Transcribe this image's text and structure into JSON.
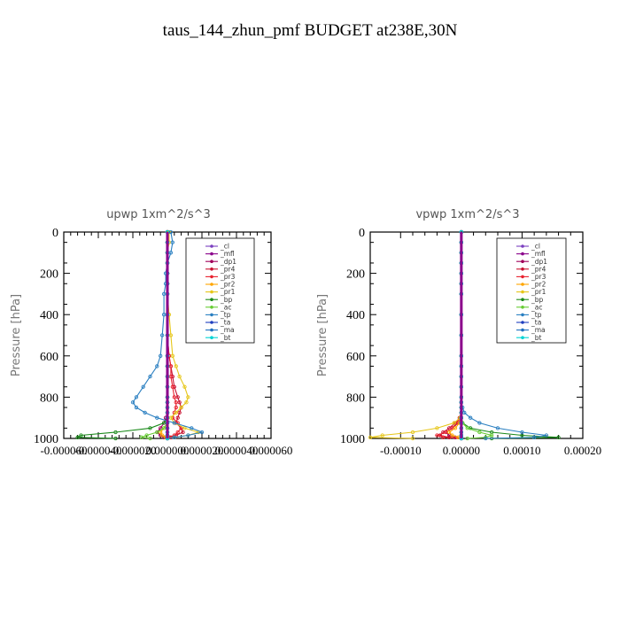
{
  "figure_title": "taus_144_zhun_pmf  BUDGET at238E,30N",
  "chart_data": [
    {
      "type": "line",
      "title": "upwp   1xm^2/s^3",
      "ylabel": "Pressure [hPa]",
      "xlabel": "",
      "ylim": [
        1000,
        0
      ],
      "xlim": [
        -6e-05,
        6e-05
      ],
      "y_ticks": [
        "0",
        "200",
        "400",
        "600",
        "800",
        "1000"
      ],
      "x_ticks": [
        "-0.000060",
        "-0.000040",
        "-0.000020",
        "0.000000",
        "0.000020",
        "0.000040",
        "0.000060"
      ],
      "legend_placement": "top-right",
      "grid": false,
      "pressure": [
        0,
        50,
        100,
        150,
        200,
        250,
        300,
        400,
        500,
        600,
        650,
        700,
        750,
        800,
        825,
        850,
        875,
        900,
        925,
        950,
        970,
        985,
        995,
        1000
      ],
      "series": [
        {
          "name": "_cl",
          "color": "#7b3fbf",
          "values": [
            0,
            0,
            0,
            0,
            0,
            0,
            0,
            0,
            0,
            0,
            0,
            0,
            0,
            0,
            0,
            0,
            0,
            0,
            0,
            0,
            0,
            0,
            0,
            0
          ]
        },
        {
          "name": "_mfl",
          "color": "#8b008b",
          "values": [
            0,
            0,
            0,
            0,
            0,
            0,
            0,
            0,
            0,
            0,
            0,
            0,
            0,
            0,
            0,
            0,
            0,
            0,
            0,
            0,
            0,
            0,
            0,
            0
          ]
        },
        {
          "name": "_dp1",
          "color": "#a0005a",
          "values": [
            0,
            0,
            0,
            0,
            0,
            0,
            0,
            0,
            0,
            0,
            0,
            0,
            0,
            0,
            0,
            0,
            0,
            -1e-06,
            -2e-06,
            -4e-06,
            -6e-06,
            -4e-06,
            -2e-06,
            0
          ]
        },
        {
          "name": "_pr4",
          "color": "#c8102e",
          "values": [
            0,
            0,
            0,
            0,
            0,
            0,
            0,
            0,
            0,
            1e-06,
            2e-06,
            3e-06,
            4e-06,
            6e-06,
            7e-06,
            8e-06,
            7e-06,
            6e-06,
            5e-06,
            8e-06,
            9e-06,
            5e-06,
            2e-06,
            0
          ]
        },
        {
          "name": "_pr3",
          "color": "#e8212e",
          "values": [
            0,
            0,
            0,
            0,
            0,
            0,
            0,
            0,
            0,
            1e-06,
            2e-06,
            2e-06,
            3e-06,
            4e-06,
            5e-06,
            5e-06,
            4e-06,
            3e-06,
            6e-06,
            8e-06,
            6e-06,
            4e-06,
            1e-06,
            0
          ]
        },
        {
          "name": "_pr2",
          "color": "#ffa500",
          "values": [
            0,
            0,
            0,
            0,
            0,
            0,
            0,
            0,
            0,
            0,
            0,
            0,
            0,
            0,
            0,
            0,
            0,
            0,
            0,
            -2e-06,
            -4e-06,
            -3e-06,
            -1e-06,
            0
          ]
        },
        {
          "name": "_pr1",
          "color": "#e6c619",
          "values": [
            1e-06,
            1e-06,
            0,
            0,
            0,
            0,
            0,
            1e-06,
            2e-06,
            3e-06,
            5e-06,
            7e-06,
            1e-05,
            1.2e-05,
            1.1e-05,
            8e-06,
            5e-06,
            2e-06,
            4e-06,
            1e-05,
            1.8e-05,
            1.2e-05,
            4e-06,
            0
          ]
        },
        {
          "name": "_bp",
          "color": "#1a8a1a",
          "values": [
            0,
            0,
            0,
            0,
            0,
            0,
            0,
            0,
            0,
            0,
            0,
            0,
            0,
            0,
            0,
            0,
            0,
            0,
            -2e-06,
            -1e-05,
            -3e-05,
            -5e-05,
            -5.2e-05,
            -3e-05
          ]
        },
        {
          "name": "_ac",
          "color": "#66cc33",
          "values": [
            0,
            0,
            0,
            0,
            0,
            0,
            0,
            0,
            0,
            0,
            0,
            0,
            0,
            0,
            0,
            0,
            0,
            0,
            0,
            -2e-06,
            -6e-06,
            -1.2e-05,
            -1.5e-05,
            -1e-05
          ]
        },
        {
          "name": "_tp",
          "color": "#2a7fc1",
          "values": [
            2e-06,
            3e-06,
            2e-06,
            0,
            -1e-06,
            -1e-06,
            -2e-06,
            -2e-06,
            -3e-06,
            -4e-06,
            -6e-06,
            -1e-05,
            -1.4e-05,
            -1.8e-05,
            -2e-05,
            -1.8e-05,
            -1.3e-05,
            -6e-06,
            4e-06,
            1.4e-05,
            2e-05,
            1.2e-05,
            4e-06,
            0
          ]
        },
        {
          "name": "_ta",
          "color": "#1f3fbf",
          "values": [
            0,
            0,
            0,
            0,
            0,
            0,
            0,
            0,
            0,
            0,
            0,
            0,
            0,
            0,
            0,
            0,
            0,
            0,
            0,
            0,
            0,
            0,
            0,
            0
          ]
        },
        {
          "name": "_ma",
          "color": "#1f6fbf",
          "values": [
            0,
            0,
            0,
            0,
            0,
            0,
            0,
            0,
            0,
            0,
            0,
            0,
            0,
            0,
            0,
            0,
            0,
            0,
            0,
            0,
            0,
            0,
            0,
            0
          ]
        },
        {
          "name": "_bt",
          "color": "#00d4d4",
          "values": [
            0,
            0,
            0,
            0,
            0,
            0,
            0,
            0,
            0,
            0,
            0,
            0,
            0,
            0,
            0,
            0,
            0,
            0,
            0,
            0,
            0,
            0,
            0,
            0
          ]
        }
      ]
    },
    {
      "type": "line",
      "title": "vpwp   1xm^2/s^3",
      "ylabel": "Pressure [hPa]",
      "xlabel": "",
      "ylim": [
        1000,
        0
      ],
      "xlim": [
        -0.00015,
        0.0002
      ],
      "y_ticks": [
        "0",
        "200",
        "400",
        "600",
        "800",
        "1000"
      ],
      "x_ticks": [
        "-0.00010",
        "0.00000",
        "0.00010",
        "0.00020"
      ],
      "legend_placement": "top-right",
      "grid": false,
      "pressure": [
        0,
        50,
        100,
        150,
        200,
        250,
        300,
        400,
        500,
        600,
        650,
        700,
        750,
        800,
        825,
        850,
        875,
        900,
        925,
        950,
        970,
        985,
        995,
        1000
      ],
      "series": [
        {
          "name": "_cl",
          "color": "#7b3fbf",
          "values": [
            0,
            0,
            0,
            0,
            0,
            0,
            0,
            0,
            0,
            0,
            0,
            0,
            0,
            0,
            0,
            0,
            0,
            0,
            0,
            0,
            0,
            0,
            0,
            0
          ]
        },
        {
          "name": "_mfl",
          "color": "#8b008b",
          "values": [
            0,
            0,
            0,
            0,
            0,
            0,
            0,
            0,
            0,
            0,
            0,
            0,
            0,
            0,
            0,
            0,
            0,
            0,
            0,
            0,
            0,
            0,
            0,
            0
          ]
        },
        {
          "name": "_dp1",
          "color": "#a0005a",
          "values": [
            0,
            0,
            0,
            0,
            0,
            0,
            0,
            0,
            0,
            0,
            0,
            0,
            0,
            0,
            0,
            0,
            0,
            0,
            -5e-06,
            -1.5e-05,
            -2.5e-05,
            -2e-05,
            -1e-05,
            0
          ]
        },
        {
          "name": "_pr4",
          "color": "#c8102e",
          "values": [
            0,
            0,
            0,
            0,
            0,
            0,
            0,
            0,
            0,
            0,
            0,
            0,
            0,
            0,
            0,
            0,
            0,
            -3e-06,
            -1e-05,
            -2e-05,
            -3e-05,
            -3.5e-05,
            -2e-05,
            0
          ]
        },
        {
          "name": "_pr3",
          "color": "#e8212e",
          "values": [
            0,
            0,
            0,
            0,
            0,
            0,
            0,
            0,
            0,
            0,
            0,
            0,
            0,
            0,
            0,
            0,
            0,
            -2e-06,
            -8e-06,
            -1.5e-05,
            -2.5e-05,
            -4e-05,
            -3e-05,
            0
          ]
        },
        {
          "name": "_pr2",
          "color": "#ffa500",
          "values": [
            0,
            0,
            0,
            0,
            0,
            0,
            0,
            0,
            0,
            0,
            0,
            0,
            0,
            0,
            0,
            0,
            0,
            0,
            -3e-06,
            -1e-05,
            -2e-05,
            -1.5e-05,
            -5e-06,
            0
          ]
        },
        {
          "name": "_pr1",
          "color": "#e6c619",
          "values": [
            0,
            0,
            0,
            0,
            0,
            0,
            0,
            0,
            0,
            0,
            0,
            0,
            0,
            0,
            0,
            0,
            0,
            -2e-06,
            -1.2e-05,
            -4e-05,
            -8e-05,
            -0.00013,
            -0.00015,
            -8e-05
          ]
        },
        {
          "name": "_bp",
          "color": "#1a8a1a",
          "values": [
            0,
            0,
            0,
            0,
            0,
            0,
            0,
            0,
            0,
            0,
            0,
            0,
            0,
            0,
            0,
            0,
            0,
            0,
            2e-06,
            1.5e-05,
            5e-05,
            0.0001,
            0.00016,
            5e-05
          ]
        },
        {
          "name": "_ac",
          "color": "#66cc33",
          "values": [
            0,
            0,
            0,
            0,
            0,
            0,
            0,
            0,
            0,
            0,
            0,
            0,
            0,
            0,
            0,
            0,
            0,
            0,
            2e-06,
            1e-05,
            3e-05,
            5e-05,
            4e-05,
            1e-05
          ]
        },
        {
          "name": "_tp",
          "color": "#2a7fc1",
          "values": [
            0,
            0,
            0,
            0,
            0,
            0,
            0,
            0,
            0,
            0,
            0,
            0,
            0,
            0,
            0,
            2e-06,
            5e-06,
            1.5e-05,
            3e-05,
            6e-05,
            0.0001,
            0.00014,
            0.00012,
            4e-05
          ]
        },
        {
          "name": "_ta",
          "color": "#1f3fbf",
          "values": [
            0,
            0,
            0,
            0,
            0,
            0,
            0,
            0,
            0,
            0,
            0,
            0,
            0,
            0,
            0,
            0,
            0,
            0,
            0,
            0,
            0,
            0,
            0,
            0
          ]
        },
        {
          "name": "_ma",
          "color": "#1f6fbf",
          "values": [
            0,
            0,
            0,
            0,
            0,
            0,
            0,
            0,
            0,
            0,
            0,
            0,
            0,
            0,
            0,
            0,
            0,
            0,
            0,
            0,
            0,
            0,
            0,
            0
          ]
        },
        {
          "name": "_bt",
          "color": "#00d4d4",
          "values": [
            0,
            0,
            0,
            0,
            0,
            0,
            0,
            0,
            0,
            0,
            0,
            0,
            0,
            0,
            0,
            0,
            0,
            0,
            0,
            0,
            0,
            0,
            0,
            0
          ]
        }
      ]
    }
  ]
}
